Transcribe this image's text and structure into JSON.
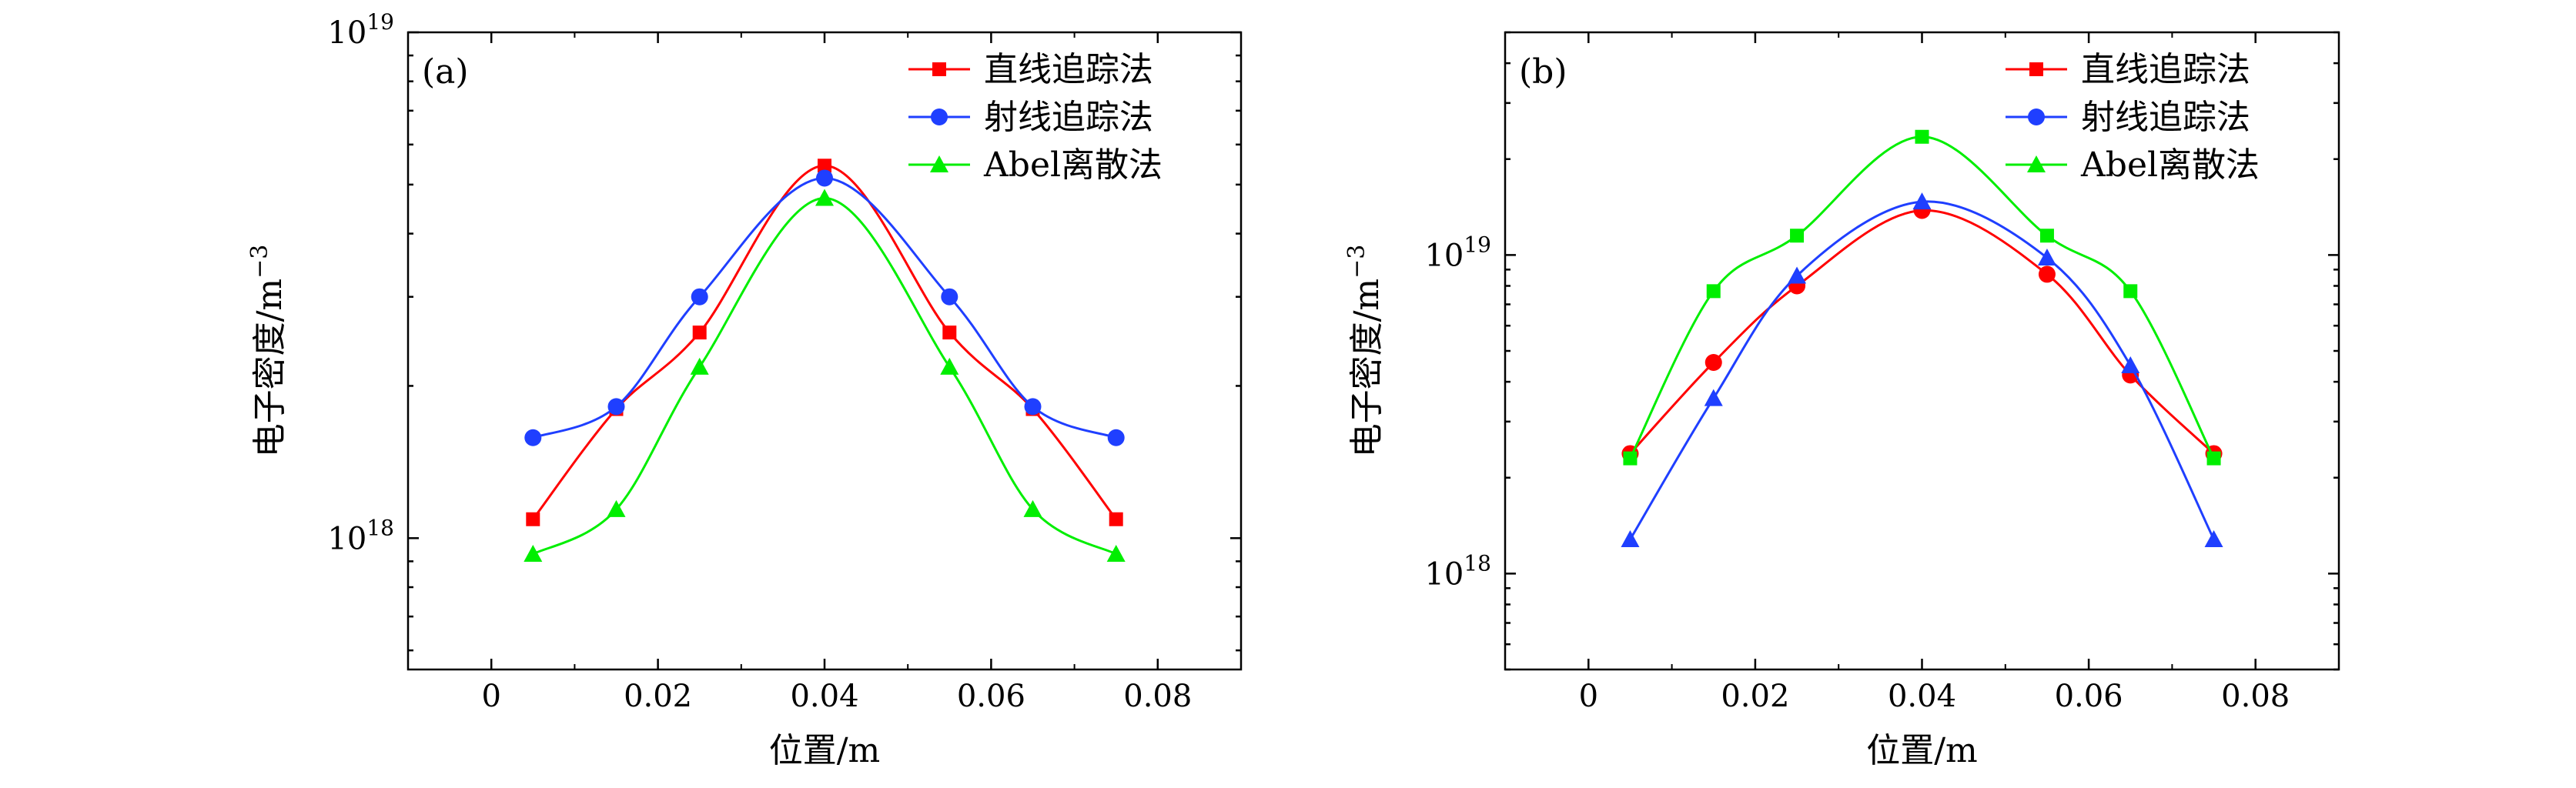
{
  "chart_data": [
    {
      "panel_label": "(a)",
      "type": "line",
      "yscale": "log",
      "xlabel": "位置/m",
      "ylabel": "电子密度/m",
      "ylabel_exp": "−3",
      "xlim": [
        -0.01,
        0.09
      ],
      "ylim": [
        5.5e+17,
        1e+19
      ],
      "xticks": [
        0,
        0.02,
        0.04,
        0.06,
        0.08
      ],
      "xtick_labels": [
        "0",
        "0.02",
        "0.04",
        "0.06",
        "0.08"
      ],
      "yticks": [
        1e+18,
        1e+19
      ],
      "ytick_labels": [
        {
          "base": "10",
          "exp": "18"
        },
        {
          "base": "10",
          "exp": "19"
        }
      ],
      "legend_position": "top-right",
      "x": [
        0.005,
        0.015,
        0.025,
        0.04,
        0.055,
        0.065,
        0.075
      ],
      "series": [
        {
          "name": "直线追踪法",
          "color": "#ff0000",
          "marker": "square",
          "values": [
            1.09e+18,
            1.8e+18,
            2.55e+18,
            5.45e+18,
            2.55e+18,
            1.8e+18,
            1.09e+18
          ]
        },
        {
          "name": "射线追踪法",
          "color": "#1f3fff",
          "marker": "circle",
          "values": [
            1.58e+18,
            1.82e+18,
            3e+18,
            5.15e+18,
            3e+18,
            1.82e+18,
            1.58e+18
          ]
        },
        {
          "name": "Abel离散法",
          "color": "#00ee00",
          "marker": "triangle",
          "values": [
            9.3e+17,
            1.14e+18,
            2.18e+18,
            4.7e+18,
            2.18e+18,
            1.14e+18,
            9.3e+17
          ]
        }
      ]
    },
    {
      "panel_label": "(b)",
      "type": "line",
      "yscale": "log",
      "xlabel": "位置/m",
      "ylabel": "电子密度/m",
      "ylabel_exp": "−3",
      "xlim": [
        -0.01,
        0.09
      ],
      "ylim": [
        5e+17,
        5e+19
      ],
      "xticks": [
        0,
        0.02,
        0.04,
        0.06,
        0.08
      ],
      "xtick_labels": [
        "0",
        "0.02",
        "0.04",
        "0.06",
        "0.08"
      ],
      "yticks": [
        1e+18,
        1e+19
      ],
      "ytick_labels": [
        {
          "base": "10",
          "exp": "18"
        },
        {
          "base": "10",
          "exp": "19"
        }
      ],
      "legend_position": "top-right",
      "x": [
        0.005,
        0.015,
        0.025,
        0.04,
        0.055,
        0.065,
        0.075
      ],
      "series": [
        {
          "name": "直线追踪法",
          "color": "#ff0000",
          "marker": "circle",
          "values": [
            2.38e+18,
            4.6e+18,
            8e+18,
            1.38e+19,
            8.7e+18,
            4.2e+18,
            2.38e+18
          ]
        },
        {
          "name": "射线追踪法",
          "color": "#1f3fff",
          "marker": "triangle",
          "values": [
            1.28e+18,
            3.55e+18,
            8.6e+18,
            1.47e+19,
            9.8e+18,
            4.5e+18,
            1.28e+18
          ]
        },
        {
          "name": "Abel离散法",
          "color": "#00ee00",
          "marker": "square",
          "values": [
            2.3e+18,
            7.7e+18,
            1.15e+19,
            2.35e+19,
            1.15e+19,
            7.7e+18,
            2.3e+18
          ]
        }
      ],
      "legend_markers": [
        "square",
        "circle",
        "triangle"
      ]
    }
  ]
}
